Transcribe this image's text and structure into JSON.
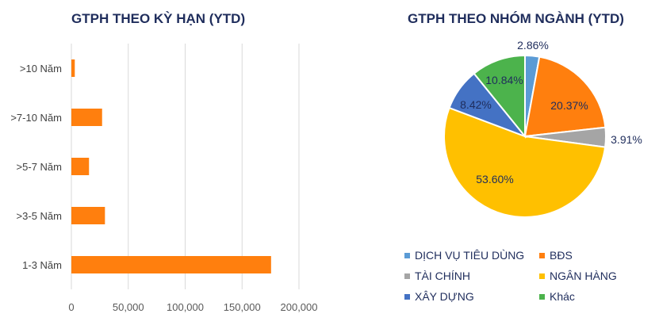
{
  "chart_data": [
    {
      "type": "bar",
      "orientation": "horizontal",
      "title": "GTPH THEO KỲ HẠN (YTD)",
      "categories": [
        ">10 Năm",
        ">7-10 Năm",
        ">5-7 Năm",
        ">3-5 Năm",
        "1-3 Năm"
      ],
      "values": [
        3000,
        27000,
        15500,
        29500,
        175500
      ],
      "xlim": [
        0,
        200000
      ],
      "xticks": [
        "0",
        "50,000",
        "100,000",
        "150,000",
        "200,000"
      ],
      "xtick_values": [
        0,
        50000,
        100000,
        150000,
        200000
      ],
      "grid": true,
      "color": "#ff7f0e"
    },
    {
      "type": "pie",
      "title": "GTPH THEO NHÓM NGÀNH (YTD)",
      "series": [
        {
          "name": "DỊCH VỤ TIÊU DÙNG",
          "value": 2.86,
          "label": "2.86%",
          "color": "#5b9bd5"
        },
        {
          "name": "BĐS",
          "value": 20.37,
          "label": "20.37%",
          "color": "#ff7f0e"
        },
        {
          "name": "TÀI CHÍNH",
          "value": 3.91,
          "label": "3.91%",
          "color": "#a5a5a5"
        },
        {
          "name": "NGÂN HÀNG",
          "value": 53.6,
          "label": "53.60%",
          "color": "#ffc000"
        },
        {
          "name": "XÂY DỰNG",
          "value": 8.42,
          "label": "8.42%",
          "color": "#4472c4"
        },
        {
          "name": "Khác",
          "value": 10.84,
          "label": "10.84%",
          "color": "#4cb34c"
        }
      ],
      "legend_placement": "bottom"
    }
  ]
}
